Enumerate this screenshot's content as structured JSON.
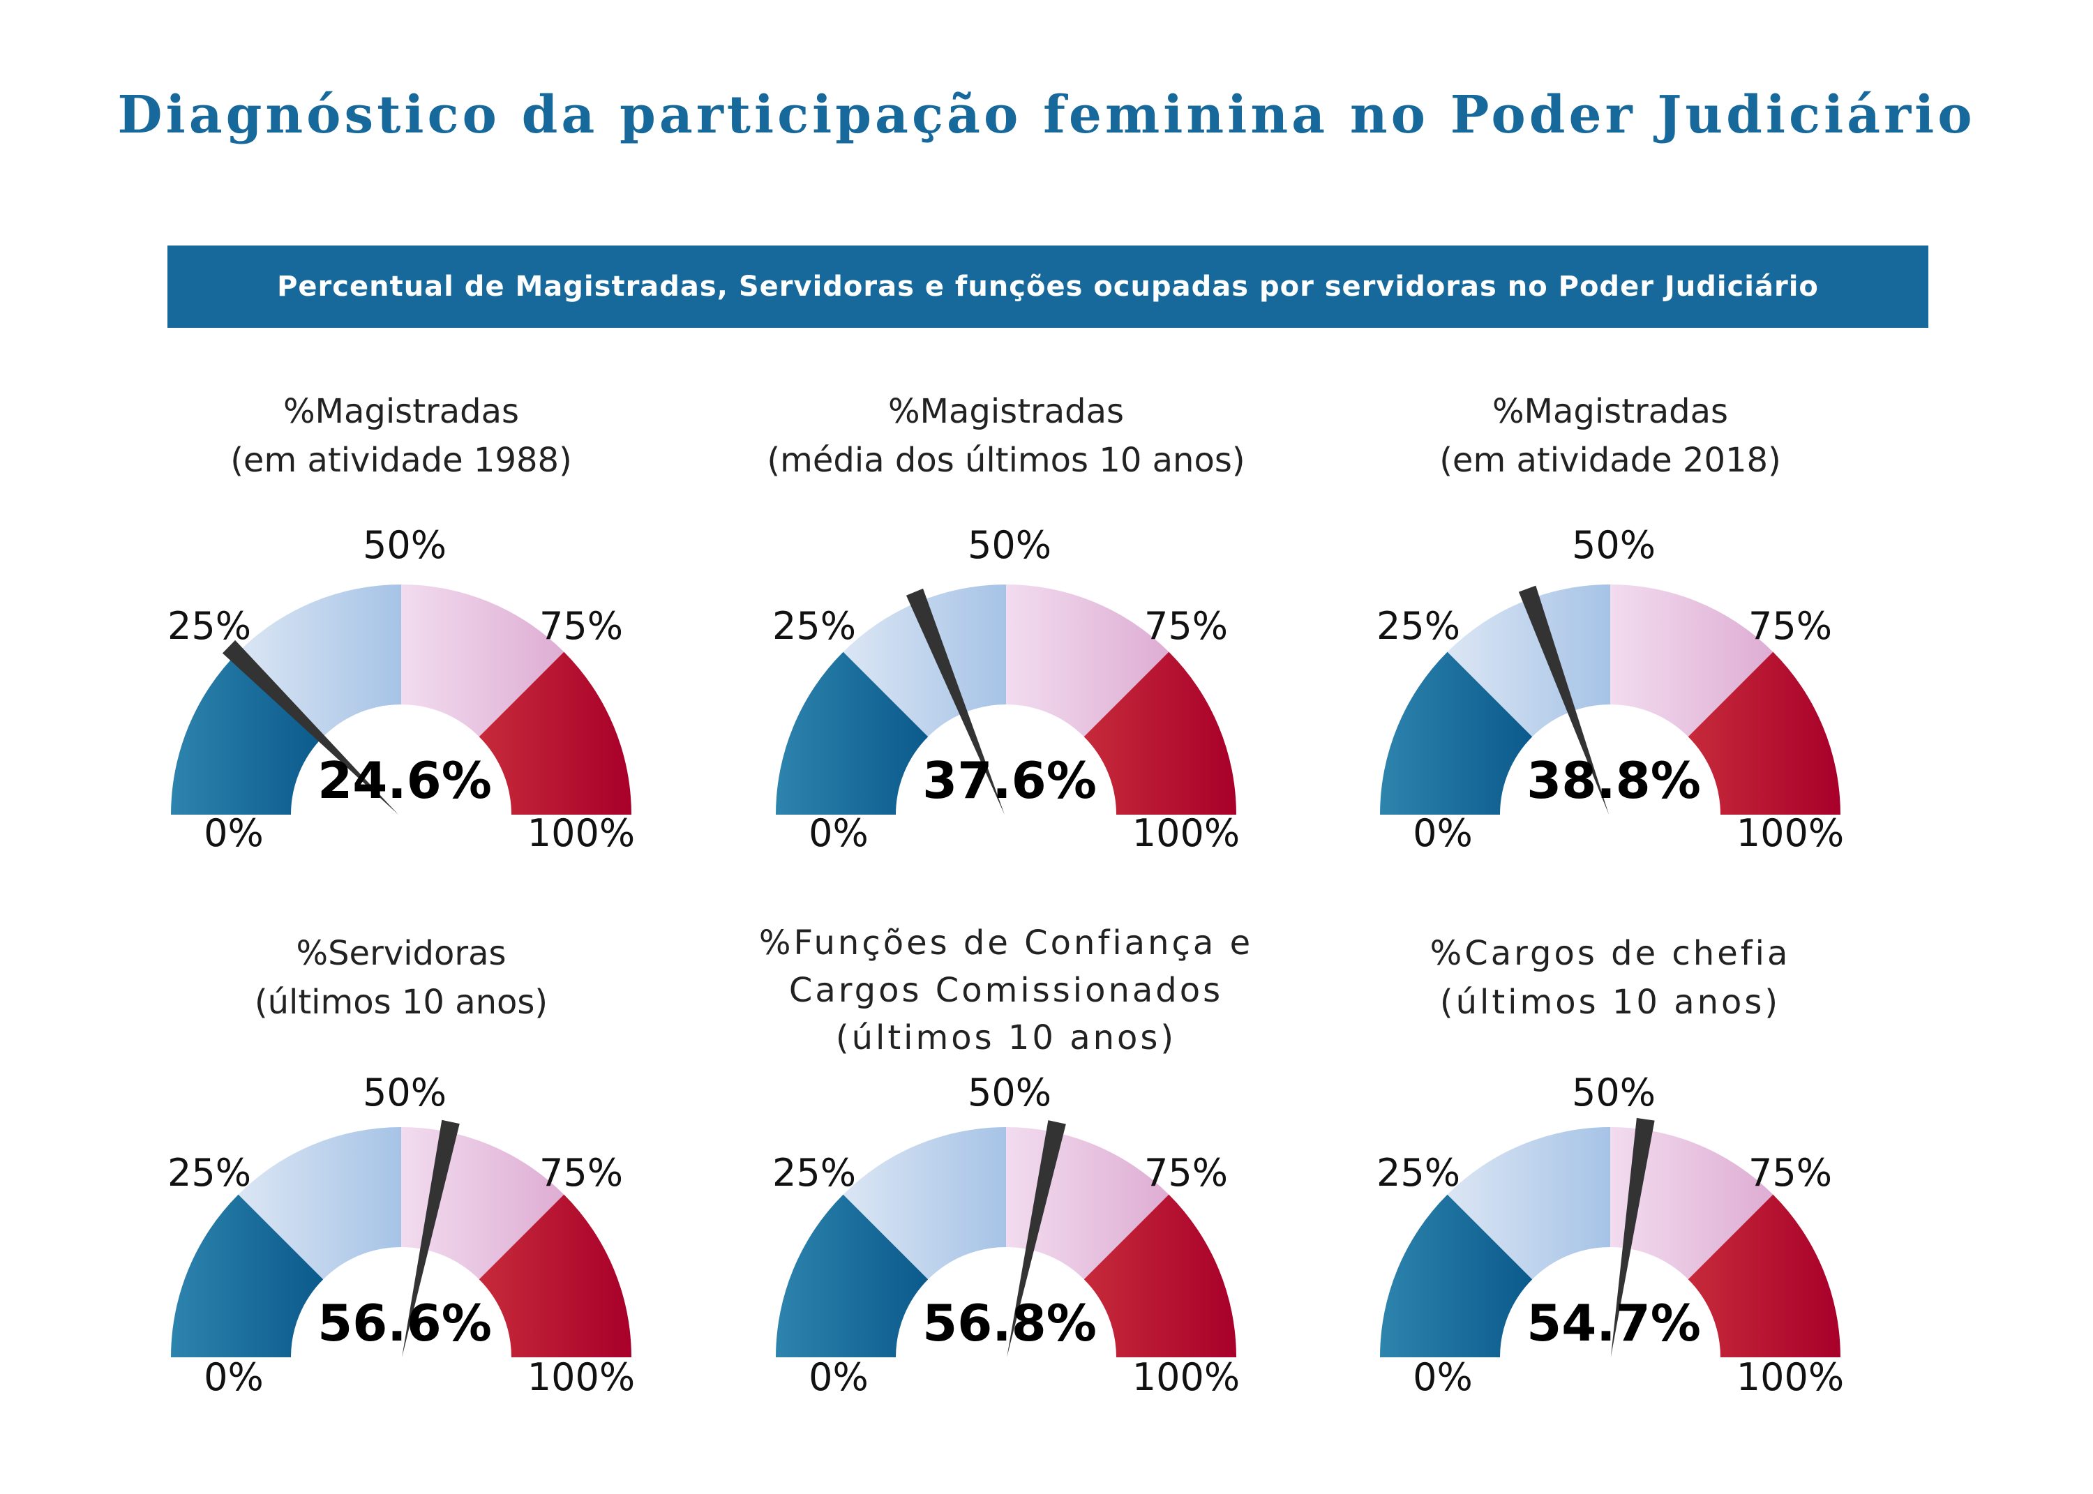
{
  "title": "Diagnóstico da participação feminina no Poder Judiciário",
  "subtitle": "Percentual de Magistradas, Servidoras e funções ocupadas por servidoras no Poder Judiciário",
  "colors": {
    "brand": "#17699c",
    "seg_0_25": [
      "#2d84ad",
      "#0b5a8c"
    ],
    "seg_25_50": [
      "#dbe6f4",
      "#a6c3e6"
    ],
    "seg_50_75": [
      "#f2dcef",
      "#deadd3"
    ],
    "seg_75_100": [
      "#c62a3a",
      "#a8002a"
    ],
    "needle": "#333333"
  },
  "chart_data": [
    {
      "type": "gauge",
      "title": [
        "%Magistradas",
        "(em atividade 1988)"
      ],
      "value": 24.6,
      "value_label": "24.6%",
      "ticks": [
        "0%",
        "25%",
        "50%",
        "75%",
        "100%"
      ],
      "range": [
        0,
        100
      ]
    },
    {
      "type": "gauge",
      "title": [
        "%Magistradas",
        "(média dos últimos 10 anos)"
      ],
      "value": 37.6,
      "value_label": "37.6%",
      "ticks": [
        "0%",
        "25%",
        "50%",
        "75%",
        "100%"
      ],
      "range": [
        0,
        100
      ]
    },
    {
      "type": "gauge",
      "title": [
        "%Magistradas",
        "(em atividade 2018)"
      ],
      "value": 38.8,
      "value_label": "38.8%",
      "ticks": [
        "0%",
        "25%",
        "50%",
        "75%",
        "100%"
      ],
      "range": [
        0,
        100
      ]
    },
    {
      "type": "gauge",
      "title": [
        "%Servidoras",
        "(últimos 10 anos)"
      ],
      "value": 56.6,
      "value_label": "56.6%",
      "ticks": [
        "0%",
        "25%",
        "50%",
        "75%",
        "100%"
      ],
      "range": [
        0,
        100
      ]
    },
    {
      "type": "gauge",
      "title": [
        "%Funções de Confiança e",
        "Cargos Comissionados",
        "(últimos 10 anos)"
      ],
      "value": 56.8,
      "value_label": "56.8%",
      "ticks": [
        "0%",
        "25%",
        "50%",
        "75%",
        "100%"
      ],
      "range": [
        0,
        100
      ]
    },
    {
      "type": "gauge",
      "title": [
        "%Cargos de chefia",
        "(últimos 10 anos)"
      ],
      "value": 54.7,
      "value_label": "54.7%",
      "ticks": [
        "0%",
        "25%",
        "50%",
        "75%",
        "100%"
      ],
      "range": [
        0,
        100
      ]
    }
  ]
}
